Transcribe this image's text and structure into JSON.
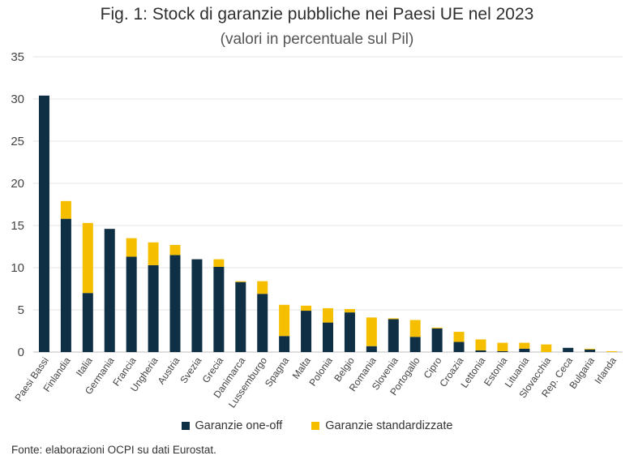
{
  "title": "Fig. 1: Stock di garanzie pubbliche nei Paesi UE nel 2023",
  "subtitle": "(valori in percentuale sul Pil)",
  "source": "Fonte: elaborazioni OCPI su dati Eurostat.",
  "colors": {
    "one_off": "#0e2f44",
    "standard": "#f5bf00",
    "grid": "#e4e4e4"
  },
  "chart_data": {
    "type": "bar",
    "stacked": true,
    "categories": [
      "Paesi Bassi",
      "Finlandia",
      "Italia",
      "Germania",
      "Francia",
      "Ungheria",
      "Austria",
      "Svezia",
      "Grecia",
      "Danimarca",
      "Lussemburgo",
      "Spagna",
      "Malta",
      "Polonia",
      "Belgio",
      "Romania",
      "Slovenia",
      "Portogallo",
      "Cipro",
      "Croazia",
      "Lettonia",
      "Estonia",
      "Lituania",
      "Slovacchia",
      "Rep. Ceca",
      "Bulgaria",
      "Irlanda"
    ],
    "series": [
      {
        "name": "Garanzie one-off",
        "values": [
          30.4,
          15.8,
          7.0,
          14.6,
          11.3,
          10.3,
          11.5,
          11.0,
          10.1,
          8.3,
          6.9,
          1.9,
          4.9,
          3.5,
          4.7,
          0.7,
          3.9,
          1.8,
          2.8,
          1.2,
          0.2,
          0.1,
          0.4,
          0.0,
          0.5,
          0.3,
          0.0
        ]
      },
      {
        "name": "Garanzie standardizzate",
        "values": [
          0.0,
          2.1,
          8.3,
          0.0,
          2.2,
          2.7,
          1.2,
          0.0,
          0.9,
          0.1,
          1.5,
          3.7,
          0.6,
          1.7,
          0.4,
          3.4,
          0.1,
          2.0,
          0.1,
          1.2,
          1.3,
          1.0,
          0.7,
          0.9,
          0.0,
          0.1,
          0.1
        ]
      }
    ],
    "ylim": [
      0,
      35
    ],
    "yticks": [
      0,
      5,
      10,
      15,
      20,
      25,
      30,
      35
    ],
    "grid": true,
    "legend_position": "bottom"
  }
}
